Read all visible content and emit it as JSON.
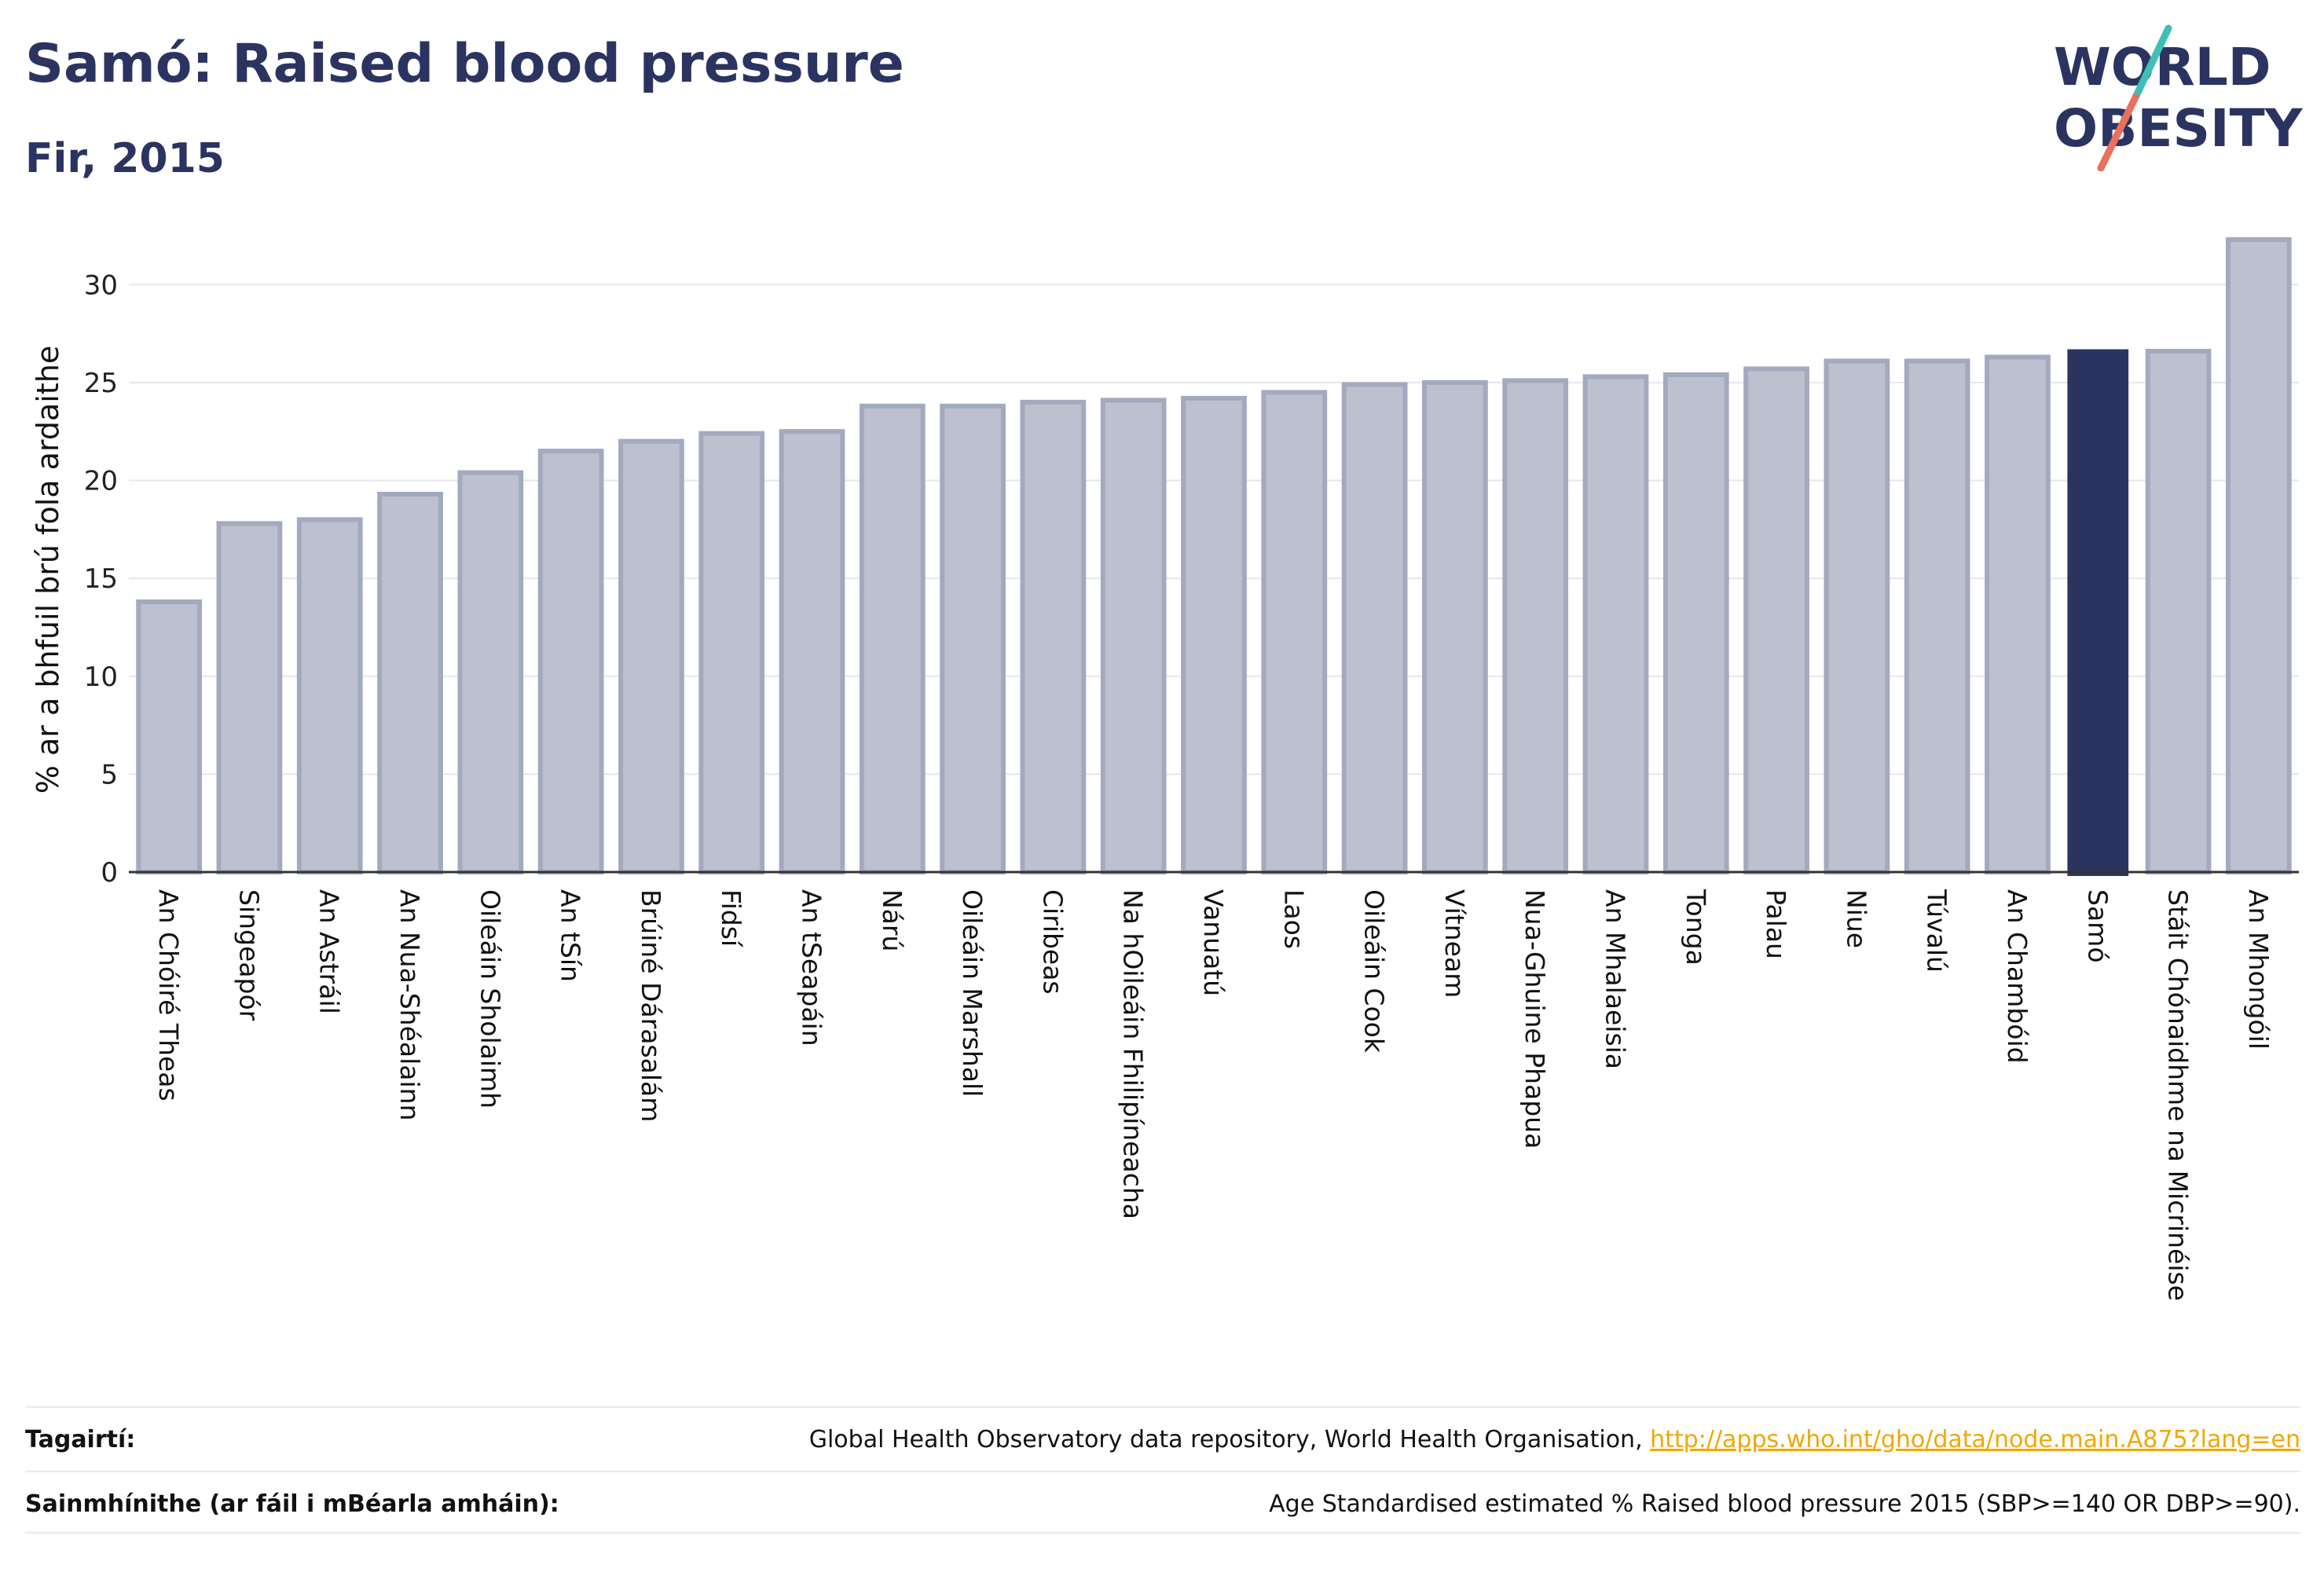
{
  "title": "Samó: Raised blood pressure",
  "subtitle": "Fir, 2015",
  "logo": {
    "line1": "WORLD",
    "line2": "OBESITY"
  },
  "colors": {
    "highlight": "#2b3460",
    "bar": "#bcc0cf",
    "bar_edge": "#a3a9bf",
    "accent_teal": "#3fbfb8",
    "accent_red": "#e8705d"
  },
  "chart_data": {
    "type": "bar",
    "ylabel": "% ar a bhfuil brú fola ardaithe",
    "ylim": [
      0,
      32.5
    ],
    "yticks": [
      0,
      5,
      10,
      15,
      20,
      25,
      30
    ],
    "grid": true,
    "highlight": "Samó",
    "categories": [
      "An Chóiré Theas",
      "Singeapór",
      "An Astráil",
      "An Nua-Shéalainn",
      "Oileáin Sholaimh",
      "An tSín",
      "Brúiné Dárasalám",
      "Fidsí",
      "An tSeapáin",
      "Nárú",
      "Oileáin Marshall",
      "Ciribeas",
      "Na hOileáin Fhilipíneacha",
      "Vanuatú",
      "Laos",
      "Oileáin Cook",
      "Vítneam",
      "Nua-Ghuine Phapua",
      "An Mhalaeisia",
      "Tonga",
      "Palau",
      "Niue",
      "Túvalú",
      "An Chambóid",
      "Samó",
      "Stáit Chónaidhme na Micrinéise",
      "An Mhongóil"
    ],
    "values": [
      13.8,
      17.8,
      18.0,
      19.3,
      20.4,
      21.5,
      22.0,
      22.4,
      22.5,
      23.8,
      23.8,
      24.0,
      24.1,
      24.2,
      24.5,
      24.9,
      25.0,
      25.1,
      25.3,
      25.4,
      25.7,
      26.1,
      26.1,
      26.3,
      26.7,
      26.6,
      32.3
    ]
  },
  "footer": {
    "references_label": "Tagairtí:",
    "references_text": "Global Health Observatory data repository, World Health Organisation, ",
    "references_link": "http://apps.who.int/gho/data/node.main.A875?lang=en",
    "definitions_label": "Sainmhínithe (ar fáil i mBéarla amháin):",
    "definitions_text": "Age Standardised estimated % Raised blood pressure 2015 (SBP>=140 OR DBP>=90)."
  }
}
